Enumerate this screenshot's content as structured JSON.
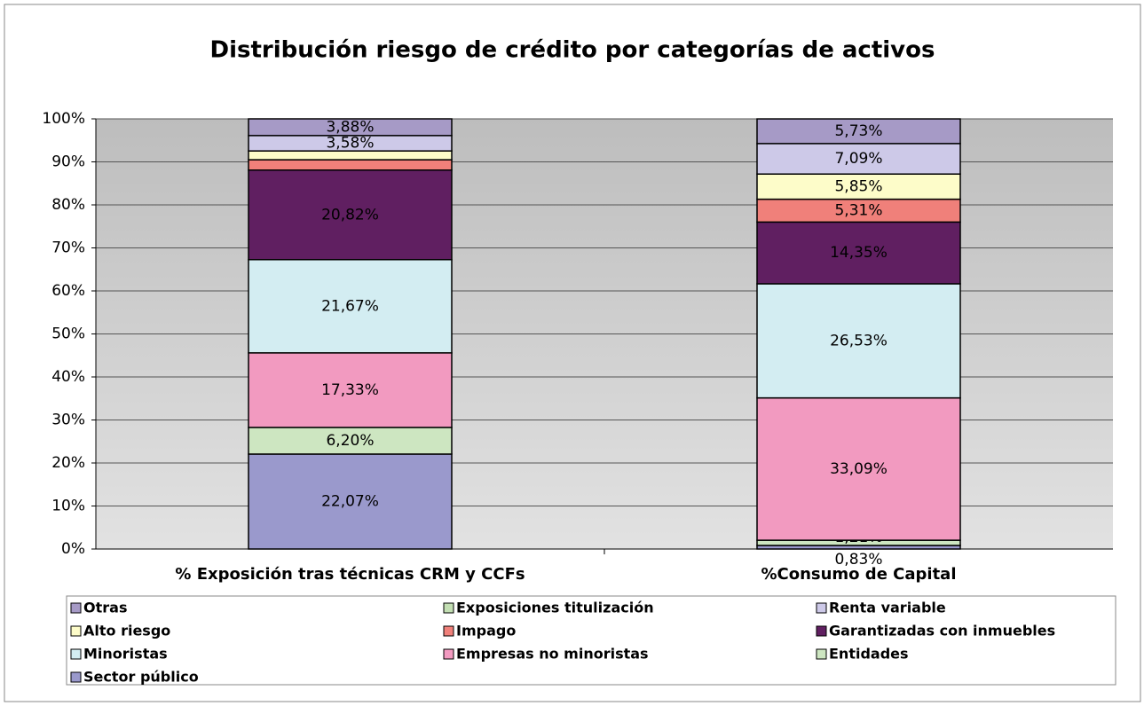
{
  "chart_data": {
    "type": "stacked_bar",
    "title": "Distribución riesgo de crédito por categorías de activos",
    "categories": [
      "% Exposición tras técnicas CRM y CCFs",
      "%Consumo de Capital"
    ],
    "series": [
      {
        "name": "Otras",
        "color": "#a69ac6",
        "values": [
          3.88,
          5.73
        ],
        "value_labels": [
          "3,88%",
          "5,73%"
        ]
      },
      {
        "name": "Exposiciones titulización",
        "color": "#c3dfb3",
        "values": [
          0,
          0
        ],
        "value_labels": [
          null,
          null
        ]
      },
      {
        "name": "Renta variable",
        "color": "#cdc9e8",
        "values": [
          3.58,
          7.09
        ],
        "value_labels": [
          "3,58%",
          "7,09%"
        ]
      },
      {
        "name": "Alto riesgo",
        "color": "#fdfcc9",
        "values": [
          2.05,
          5.85
        ],
        "value_labels": [
          null,
          "5,85%"
        ]
      },
      {
        "name": "Impago",
        "color": "#f0807a",
        "values": [
          2.4,
          5.31
        ],
        "value_labels": [
          null,
          "5,31%"
        ]
      },
      {
        "name": "Garantizadas con inmuebles",
        "color": "#601f61",
        "values": [
          20.82,
          14.35
        ],
        "value_labels": [
          "20,82%",
          "14,35%"
        ]
      },
      {
        "name": "Minoristas",
        "color": "#d3edf2",
        "values": [
          21.67,
          26.53
        ],
        "value_labels": [
          "21,67%",
          "26,53%"
        ]
      },
      {
        "name": "Empresas no minoristas",
        "color": "#f29ac0",
        "values": [
          17.33,
          33.09
        ],
        "value_labels": [
          "17,33%",
          "33,09%"
        ]
      },
      {
        "name": "Entidades",
        "color": "#cde6c1",
        "values": [
          6.2,
          1.21
        ],
        "value_labels": [
          "6,20%",
          "1,21%"
        ]
      },
      {
        "name": "Sector público",
        "color": "#9a99cc",
        "values": [
          22.07,
          0.83
        ],
        "value_labels": [
          "22,07%",
          "0,83%"
        ]
      }
    ],
    "ylim": [
      0,
      100
    ],
    "yticks": [
      {
        "value": 0,
        "label": "0%"
      },
      {
        "value": 10,
        "label": "10%"
      },
      {
        "value": 20,
        "label": "20%"
      },
      {
        "value": 30,
        "label": "30%"
      },
      {
        "value": 40,
        "label": "40%"
      },
      {
        "value": 50,
        "label": "50%"
      },
      {
        "value": 60,
        "label": "60%"
      },
      {
        "value": 70,
        "label": "70%"
      },
      {
        "value": 80,
        "label": "80%"
      },
      {
        "value": 90,
        "label": "90%"
      },
      {
        "value": 100,
        "label": "100%"
      }
    ],
    "grid": true,
    "legend": "bottom"
  }
}
